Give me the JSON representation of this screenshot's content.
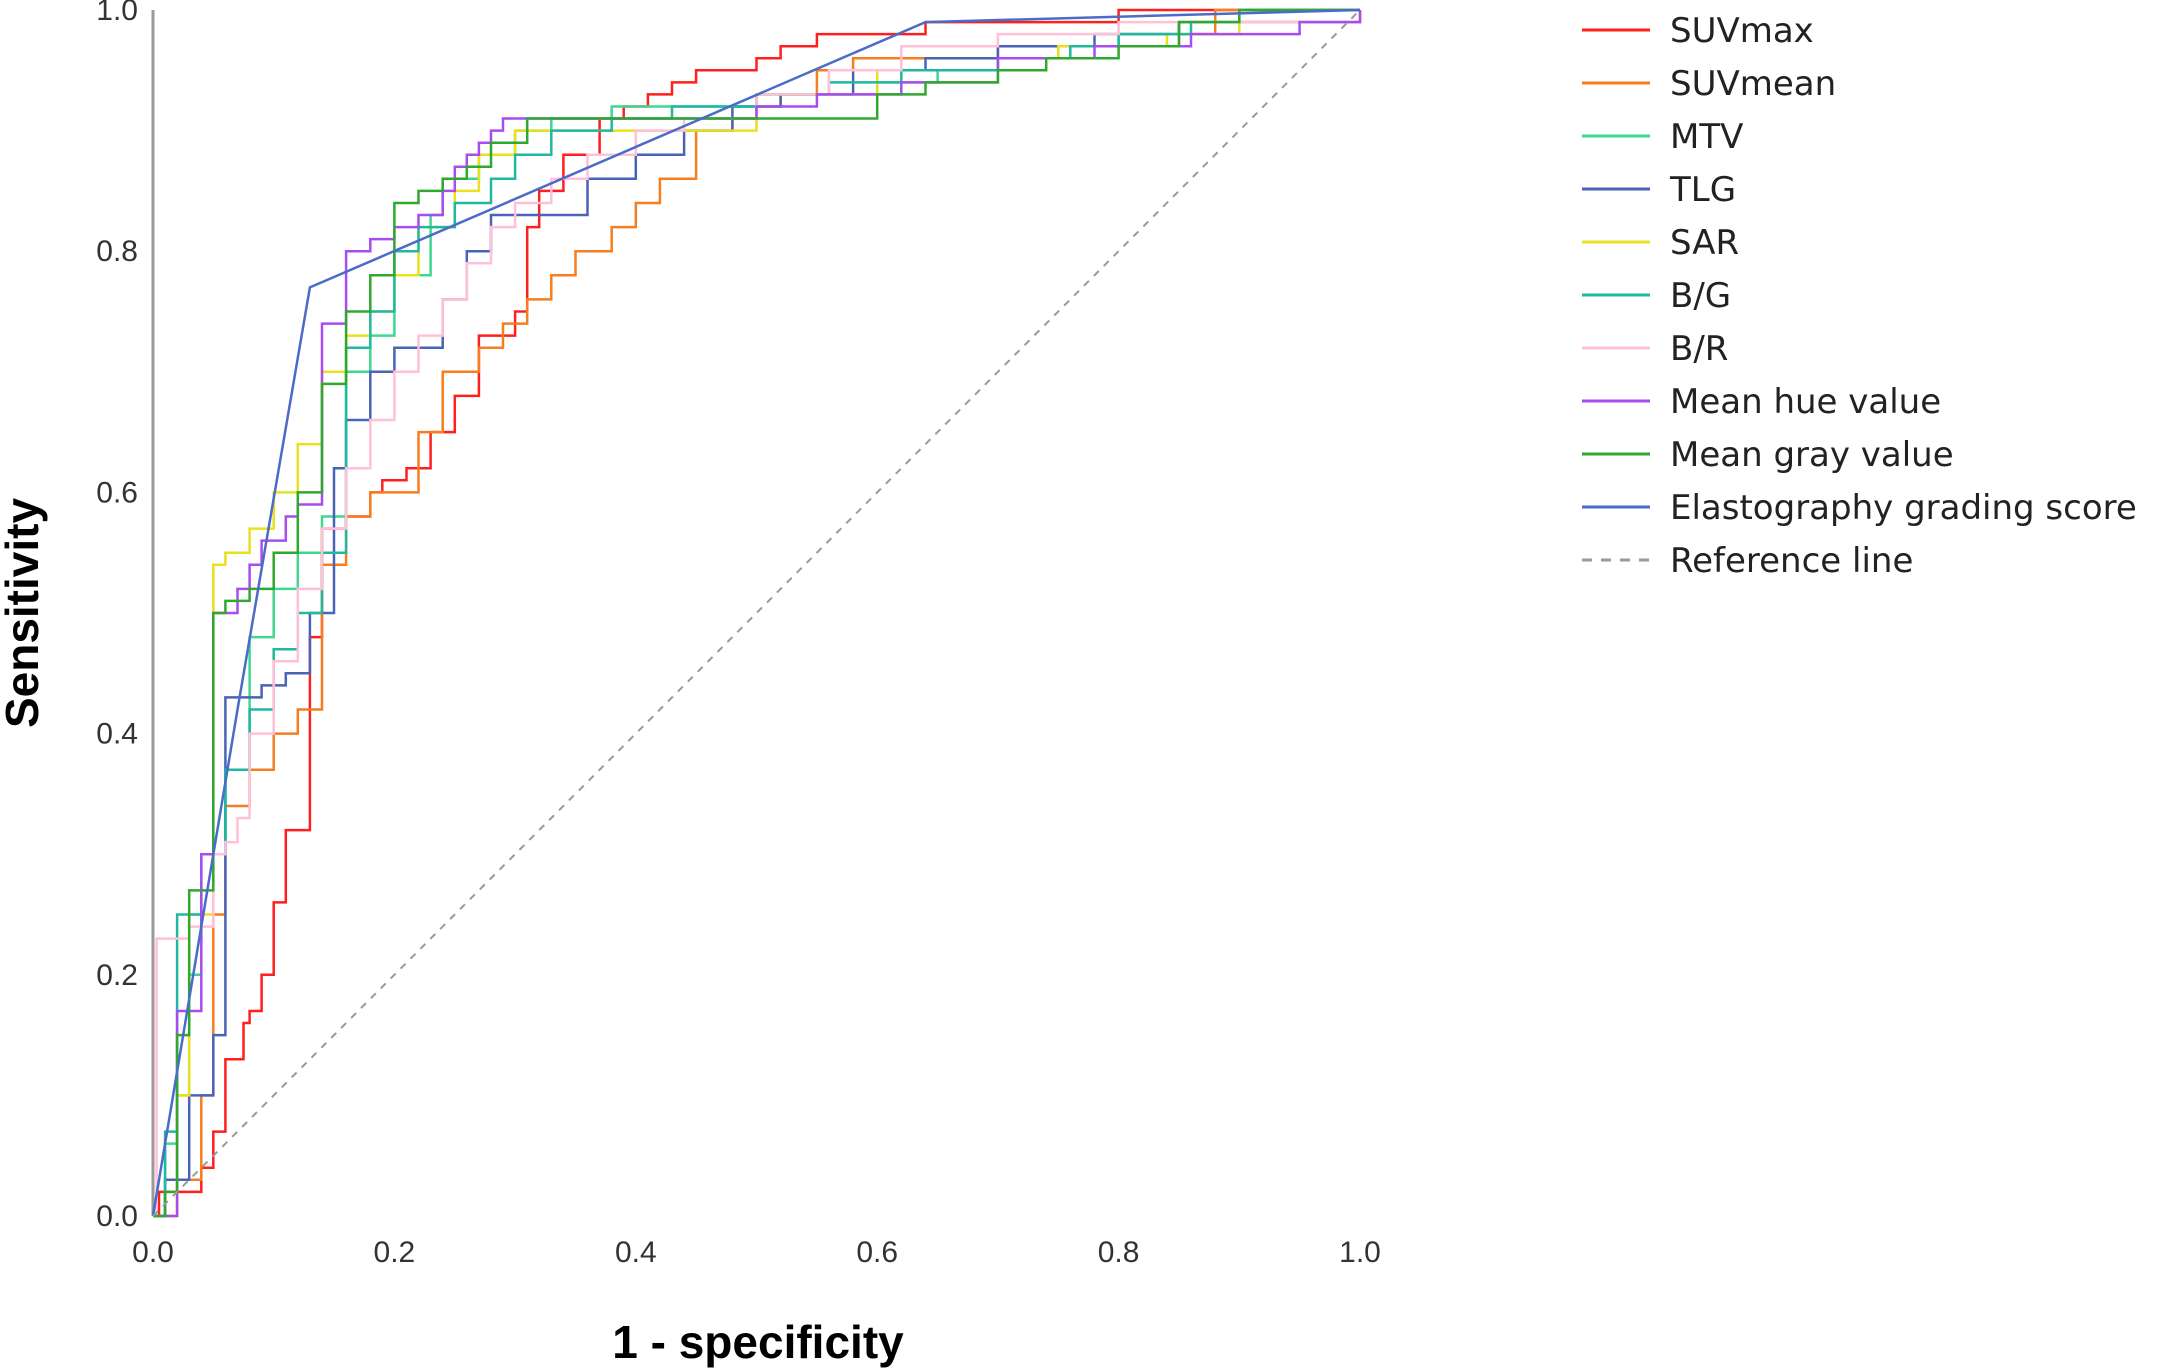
{
  "chart_data": {
    "type": "line",
    "title": "",
    "xlabel": "1 - specificity",
    "ylabel": "Sensitivity",
    "xlim": [
      0,
      1
    ],
    "ylim": [
      0,
      1
    ],
    "xticks": [
      "0.0",
      "0.2",
      "0.4",
      "0.6",
      "0.8",
      "1.0"
    ],
    "yticks": [
      "0.0",
      "0.2",
      "0.4",
      "0.6",
      "0.8",
      "1.0"
    ],
    "grid": false,
    "legend_position": "right",
    "series": [
      {
        "name": "SUVmax",
        "color": "#ff1f1f",
        "step": true,
        "x": [
          0,
          0.005,
          0.04,
          0.05,
          0.06,
          0.075,
          0.08,
          0.09,
          0.1,
          0.11,
          0.13,
          0.14,
          0.16,
          0.18,
          0.19,
          0.21,
          0.23,
          0.25,
          0.27,
          0.3,
          0.31,
          0.32,
          0.34,
          0.37,
          0.39,
          0.41,
          0.43,
          0.45,
          0.5,
          0.52,
          0.55,
          0.58,
          0.6,
          0.64,
          0.7,
          0.8,
          0.85,
          0.9,
          1.0
        ],
        "y": [
          0,
          0.02,
          0.04,
          0.07,
          0.13,
          0.16,
          0.17,
          0.2,
          0.26,
          0.32,
          0.48,
          0.57,
          0.58,
          0.6,
          0.61,
          0.62,
          0.65,
          0.68,
          0.73,
          0.75,
          0.82,
          0.85,
          0.88,
          0.91,
          0.92,
          0.93,
          0.94,
          0.95,
          0.96,
          0.97,
          0.98,
          0.98,
          0.98,
          0.99,
          0.99,
          1.0,
          1.0,
          1.0,
          1.0
        ]
      },
      {
        "name": "SUVmean",
        "color": "#f57f20",
        "step": true,
        "x": [
          0,
          0.02,
          0.04,
          0.05,
          0.06,
          0.08,
          0.1,
          0.12,
          0.14,
          0.16,
          0.18,
          0.22,
          0.24,
          0.27,
          0.29,
          0.31,
          0.33,
          0.35,
          0.38,
          0.4,
          0.42,
          0.45,
          0.48,
          0.5,
          0.52,
          0.55,
          0.58,
          0.62,
          0.7,
          0.78,
          0.85,
          0.88,
          0.9,
          1.0
        ],
        "y": [
          0,
          0.03,
          0.1,
          0.25,
          0.34,
          0.37,
          0.4,
          0.42,
          0.54,
          0.58,
          0.6,
          0.65,
          0.7,
          0.72,
          0.74,
          0.76,
          0.78,
          0.8,
          0.82,
          0.84,
          0.86,
          0.9,
          0.91,
          0.92,
          0.93,
          0.95,
          0.96,
          0.96,
          0.97,
          0.97,
          0.98,
          1.0,
          1.0,
          1.0
        ]
      },
      {
        "name": "MTV",
        "color": "#40d890",
        "step": true,
        "x": [
          0,
          0.01,
          0.02,
          0.03,
          0.04,
          0.06,
          0.08,
          0.1,
          0.12,
          0.14,
          0.16,
          0.18,
          0.2,
          0.23,
          0.24,
          0.27,
          0.28,
          0.3,
          0.33,
          0.35,
          0.38,
          0.42,
          0.47,
          0.5,
          0.55,
          0.6,
          0.65,
          0.7,
          0.75,
          0.8,
          0.85,
          0.9,
          1.0
        ],
        "y": [
          0,
          0.06,
          0.1,
          0.2,
          0.3,
          0.37,
          0.48,
          0.52,
          0.55,
          0.58,
          0.7,
          0.73,
          0.78,
          0.83,
          0.86,
          0.88,
          0.88,
          0.9,
          0.91,
          0.91,
          0.92,
          0.92,
          0.92,
          0.93,
          0.93,
          0.94,
          0.95,
          0.96,
          0.97,
          0.98,
          0.99,
          1.0,
          1.0
        ]
      },
      {
        "name": "TLG",
        "color": "#4a62b8",
        "step": true,
        "x": [
          0,
          0.01,
          0.03,
          0.05,
          0.06,
          0.07,
          0.09,
          0.11,
          0.13,
          0.15,
          0.16,
          0.18,
          0.2,
          0.24,
          0.26,
          0.28,
          0.3,
          0.32,
          0.36,
          0.4,
          0.44,
          0.48,
          0.52,
          0.58,
          0.64,
          0.7,
          0.78,
          0.85,
          1.0
        ],
        "y": [
          0,
          0.03,
          0.1,
          0.15,
          0.43,
          0.43,
          0.44,
          0.45,
          0.5,
          0.62,
          0.66,
          0.7,
          0.72,
          0.76,
          0.8,
          0.83,
          0.83,
          0.83,
          0.86,
          0.88,
          0.9,
          0.92,
          0.93,
          0.95,
          0.96,
          0.97,
          0.98,
          0.99,
          1.0
        ]
      },
      {
        "name": "SAR",
        "color": "#e8e020",
        "step": true,
        "x": [
          0,
          0.02,
          0.03,
          0.05,
          0.06,
          0.08,
          0.1,
          0.12,
          0.14,
          0.16,
          0.18,
          0.2,
          0.22,
          0.25,
          0.27,
          0.3,
          0.32,
          0.35,
          0.4,
          0.5,
          0.6,
          0.7,
          0.75,
          0.8,
          0.84,
          0.9,
          1.0
        ],
        "y": [
          0,
          0.1,
          0.25,
          0.54,
          0.55,
          0.57,
          0.6,
          0.64,
          0.7,
          0.73,
          0.75,
          0.78,
          0.82,
          0.85,
          0.88,
          0.9,
          0.9,
          0.9,
          0.9,
          0.93,
          0.95,
          0.96,
          0.97,
          0.97,
          0.98,
          0.99,
          1.0
        ]
      },
      {
        "name": "B/G",
        "color": "#20b8a0",
        "step": true,
        "x": [
          0,
          0.01,
          0.02,
          0.04,
          0.05,
          0.06,
          0.08,
          0.1,
          0.12,
          0.14,
          0.16,
          0.18,
          0.2,
          0.22,
          0.25,
          0.28,
          0.3,
          0.33,
          0.38,
          0.43,
          0.5,
          0.56,
          0.62,
          0.7,
          0.76,
          0.8,
          0.86,
          0.9,
          1.0
        ],
        "y": [
          0,
          0.07,
          0.25,
          0.3,
          0.3,
          0.37,
          0.42,
          0.47,
          0.5,
          0.55,
          0.72,
          0.75,
          0.8,
          0.82,
          0.84,
          0.86,
          0.88,
          0.9,
          0.91,
          0.92,
          0.93,
          0.94,
          0.95,
          0.96,
          0.97,
          0.98,
          0.99,
          1.0,
          1.0
        ]
      },
      {
        "name": "B/R",
        "color": "#ffc0d8",
        "step": true,
        "x": [
          0,
          0.003,
          0.03,
          0.05,
          0.06,
          0.07,
          0.08,
          0.1,
          0.12,
          0.14,
          0.16,
          0.18,
          0.2,
          0.22,
          0.24,
          0.26,
          0.28,
          0.3,
          0.33,
          0.36,
          0.4,
          0.44,
          0.5,
          0.56,
          0.62,
          0.7,
          0.8,
          0.9,
          1.0
        ],
        "y": [
          0,
          0.23,
          0.24,
          0.3,
          0.31,
          0.33,
          0.4,
          0.46,
          0.52,
          0.57,
          0.62,
          0.66,
          0.7,
          0.73,
          0.76,
          0.79,
          0.82,
          0.84,
          0.86,
          0.88,
          0.9,
          0.91,
          0.93,
          0.95,
          0.97,
          0.98,
          0.99,
          0.99,
          1.0
        ]
      },
      {
        "name": "Mean hue value",
        "color": "#a84cf0",
        "step": true,
        "x": [
          0,
          0.02,
          0.04,
          0.05,
          0.07,
          0.08,
          0.09,
          0.11,
          0.12,
          0.14,
          0.16,
          0.18,
          0.2,
          0.22,
          0.24,
          0.25,
          0.26,
          0.27,
          0.28,
          0.29,
          0.3,
          0.32,
          0.45,
          0.5,
          0.55,
          0.62,
          0.7,
          0.78,
          0.86,
          0.95,
          1.0
        ],
        "y": [
          0,
          0.17,
          0.3,
          0.5,
          0.52,
          0.54,
          0.56,
          0.58,
          0.59,
          0.74,
          0.8,
          0.81,
          0.82,
          0.83,
          0.85,
          0.87,
          0.88,
          0.89,
          0.9,
          0.91,
          0.91,
          0.91,
          0.91,
          0.92,
          0.93,
          0.94,
          0.96,
          0.97,
          0.98,
          0.99,
          1.0
        ]
      },
      {
        "name": "Mean gray value",
        "color": "#30a830",
        "step": true,
        "x": [
          0,
          0.01,
          0.02,
          0.03,
          0.05,
          0.06,
          0.08,
          0.1,
          0.12,
          0.14,
          0.16,
          0.18,
          0.2,
          0.22,
          0.24,
          0.26,
          0.28,
          0.31,
          0.35,
          0.4,
          0.5,
          0.6,
          0.64,
          0.7,
          0.74,
          0.8,
          0.85,
          0.9,
          1.0
        ],
        "y": [
          0,
          0.02,
          0.15,
          0.27,
          0.5,
          0.51,
          0.52,
          0.55,
          0.6,
          0.69,
          0.75,
          0.78,
          0.84,
          0.85,
          0.86,
          0.87,
          0.89,
          0.91,
          0.91,
          0.91,
          0.91,
          0.93,
          0.94,
          0.95,
          0.96,
          0.97,
          0.99,
          1.0,
          1.0
        ]
      },
      {
        "name": "Elastography grading score",
        "color": "#4a6cc8",
        "step": false,
        "x": [
          0,
          0.07,
          0.13,
          0.64,
          1.0
        ],
        "y": [
          0,
          0.42,
          0.77,
          0.99,
          1.0
        ]
      },
      {
        "name": "Reference line",
        "color": "#9a9a9a",
        "step": false,
        "dashed": true,
        "x": [
          0,
          1.0
        ],
        "y": [
          0,
          1.0
        ]
      }
    ]
  }
}
